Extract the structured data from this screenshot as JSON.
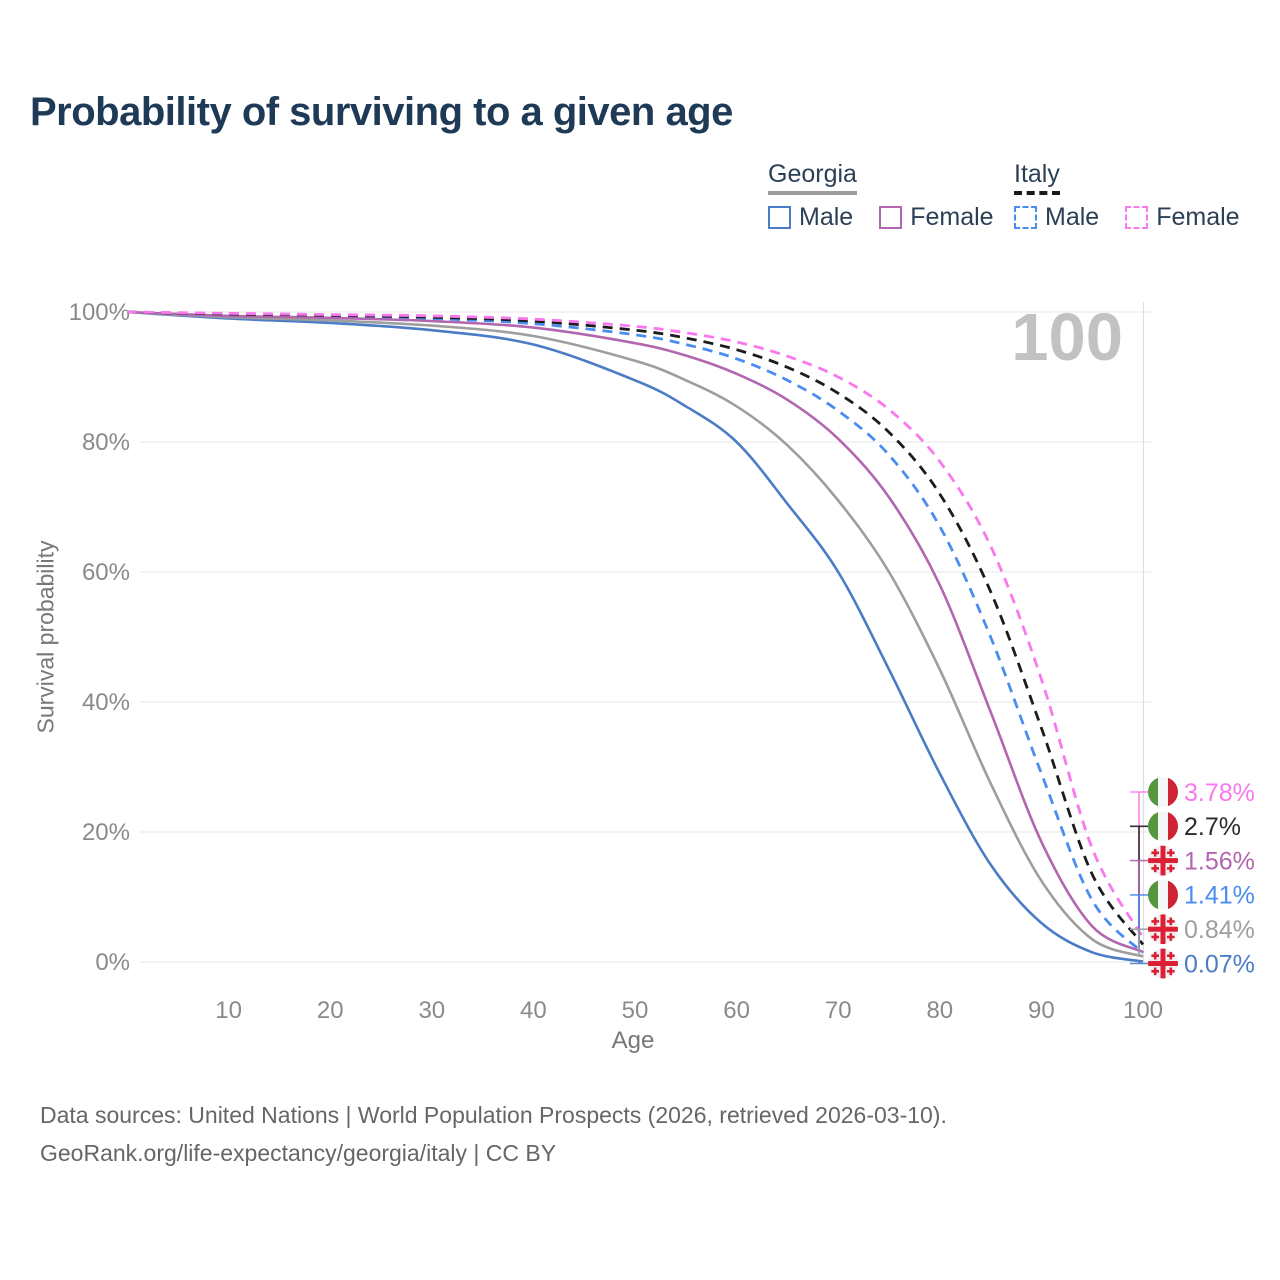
{
  "page": {
    "title": "Probability of surviving to a given age",
    "footer": {
      "line1": "Data sources: United Nations | World Population Prospects (2026, retrieved 2026-03-10).",
      "line2": "GeoRank.org/life-expectancy/georgia/italy | CC BY"
    }
  },
  "legend": {
    "groups": [
      {
        "name": "Georgia",
        "line_style": "solid",
        "line_color": "#9e9e9e",
        "items": [
          {
            "label": "Male",
            "color": "#4b7cc6",
            "dashed": false
          },
          {
            "label": "Female",
            "color": "#b266af",
            "dashed": false
          }
        ]
      },
      {
        "name": "Italy",
        "line_style": "dashed",
        "line_color": "#1a1a1a",
        "items": [
          {
            "label": "Male",
            "color": "#4a8df0",
            "dashed": true
          },
          {
            "label": "Female",
            "color": "#fa78ee",
            "dashed": true
          }
        ]
      }
    ]
  },
  "chart_data": {
    "type": "line",
    "title": "Probability of surviving to a given age",
    "xlabel": "Age",
    "ylabel": "Survival probability",
    "xlim": [
      0,
      100
    ],
    "ylim": [
      0,
      100
    ],
    "grid": "horizontal",
    "legend_position": "top-right",
    "xticks": [
      "10",
      "20",
      "30",
      "40",
      "50",
      "60",
      "70",
      "80",
      "90",
      "100"
    ],
    "yticks": [
      {
        "label": "0%",
        "value": 0
      },
      {
        "label": "20%",
        "value": 20
      },
      {
        "label": "40%",
        "value": 40
      },
      {
        "label": "60%",
        "value": 60
      },
      {
        "label": "80%",
        "value": 80
      },
      {
        "label": "100%",
        "value": 100
      }
    ],
    "hover_age": "100",
    "ages": [
      0,
      10,
      20,
      30,
      40,
      50,
      55,
      60,
      65,
      70,
      75,
      80,
      85,
      90,
      95,
      100
    ],
    "series": [
      {
        "name": "Italy Female",
        "country": "Italy",
        "sex": "Female",
        "color": "#fa78ee",
        "label_color": "#fa78ee",
        "dashed": true,
        "flag": "italy",
        "end_label": "3.78%",
        "values": [
          100,
          99.8,
          99.6,
          99.4,
          98.9,
          97.8,
          96.8,
          95.4,
          93.2,
          90,
          85,
          77,
          64,
          43.5,
          17.5,
          3.78
        ]
      },
      {
        "name": "Italy",
        "country": "Italy",
        "sex": "Both",
        "color": "#1c1c1c",
        "label_color": "#2b2b2b",
        "dashed": true,
        "flag": "italy",
        "end_label": "2.7%",
        "values": [
          100,
          99.7,
          99.5,
          99.2,
          98.6,
          97.2,
          96,
          94.2,
          91.5,
          87.5,
          81.5,
          72,
          57,
          36,
          13.5,
          2.7
        ]
      },
      {
        "name": "Georgia Female",
        "country": "Georgia",
        "sex": "Female",
        "color": "#b266af",
        "label_color": "#b266af",
        "dashed": false,
        "flag": "georgia",
        "end_label": "1.56%",
        "values": [
          100,
          99.4,
          99.1,
          98.6,
          97.6,
          95.2,
          93.3,
          90.5,
          86.5,
          80.5,
          71.5,
          58,
          38.5,
          18.5,
          5.5,
          1.56
        ]
      },
      {
        "name": "Italy Male",
        "country": "Italy",
        "sex": "Male",
        "color": "#4a8df0",
        "label_color": "#4a8df0",
        "dashed": true,
        "flag": "italy",
        "end_label": "1.41%",
        "values": [
          100,
          99.6,
          99.4,
          99,
          98.2,
          96.5,
          95,
          92.8,
          89.5,
          84.8,
          78,
          67,
          50,
          29,
          9.5,
          1.41
        ]
      },
      {
        "name": "Georgia",
        "country": "Georgia",
        "sex": "Both",
        "color": "#9e9e9e",
        "label_color": "#9e9e9e",
        "dashed": false,
        "flag": "georgia",
        "end_label": "0.84%",
        "values": [
          100,
          99.2,
          98.7,
          97.9,
          96.3,
          92.5,
          89.5,
          85.5,
          79.5,
          71,
          60,
          45,
          27.5,
          12.5,
          3.5,
          0.84
        ]
      },
      {
        "name": "Georgia Male",
        "country": "Georgia",
        "sex": "Male",
        "color": "#4b7cc6",
        "label_color": "#4b7cc6",
        "dashed": false,
        "flag": "georgia",
        "end_label": "0.07%",
        "values": [
          100,
          99,
          98.3,
          97.2,
          95,
          89.5,
          85.5,
          80,
          70.5,
          60,
          45,
          29,
          15,
          6,
          1.5,
          0.07
        ]
      }
    ],
    "flag_colors": {
      "georgia": {
        "bg": "#f1f1f1",
        "cross": "#dd1f35"
      },
      "italy": {
        "green": "#55973f",
        "white": "#f6f6f6",
        "red": "#cd2333"
      }
    }
  }
}
